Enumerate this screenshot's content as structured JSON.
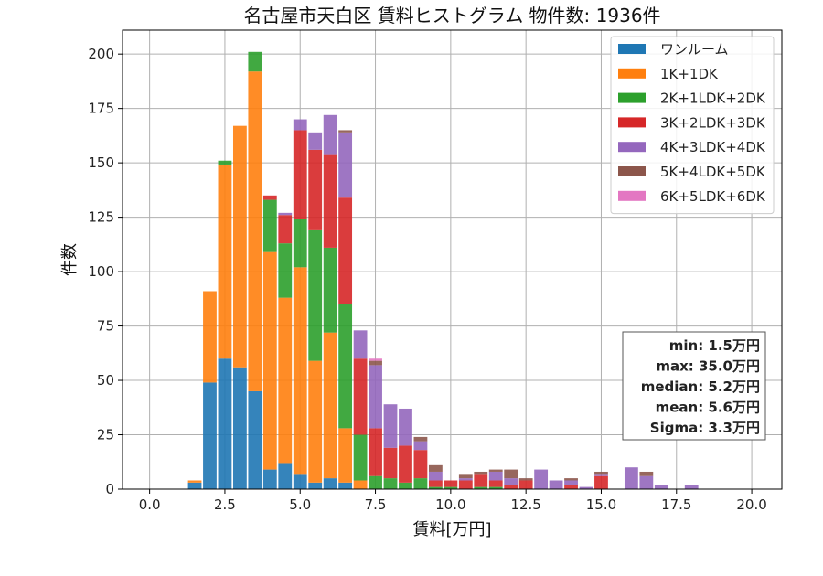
{
  "chart_data": {
    "type": "bar",
    "stacked": true,
    "title": "名古屋市天白区 賃料ヒストグラム 物件数: 1936件",
    "xlabel": "賃料[万円]",
    "ylabel": "件数",
    "xlim": [
      -0.9,
      21.0
    ],
    "ylim": [
      0,
      211
    ],
    "xticks": [
      0.0,
      2.5,
      5.0,
      7.5,
      10.0,
      12.5,
      15.0,
      17.5,
      20.0
    ],
    "xtick_labels": [
      "0.0",
      "2.5",
      "5.0",
      "7.5",
      "10.0",
      "12.5",
      "15.0",
      "17.5",
      "20.0"
    ],
    "yticks": [
      0,
      25,
      50,
      75,
      100,
      125,
      150,
      175,
      200
    ],
    "ytick_labels": [
      "0",
      "25",
      "50",
      "75",
      "100",
      "125",
      "150",
      "175",
      "200"
    ],
    "grid": true,
    "legend_position": "top-right",
    "bin_width": 0.5,
    "x": [
      1.5,
      2.0,
      2.5,
      3.0,
      3.5,
      4.0,
      4.5,
      5.0,
      5.5,
      6.0,
      6.5,
      7.0,
      7.5,
      8.0,
      8.5,
      9.0,
      9.5,
      10.0,
      10.5,
      11.0,
      11.5,
      12.0,
      12.5,
      13.0,
      13.5,
      14.0,
      14.5,
      15.0,
      15.5,
      16.0,
      16.5,
      17.0,
      17.5,
      18.0
    ],
    "series": [
      {
        "name": "ワンルーム",
        "color": "#1f77b4",
        "values": [
          3,
          49,
          60,
          56,
          45,
          9,
          12,
          7,
          3,
          5,
          3,
          0,
          0,
          0,
          0,
          0,
          0,
          0,
          0,
          0,
          0,
          0,
          0,
          0,
          0,
          0,
          0,
          0,
          0,
          0,
          0,
          0,
          0,
          0
        ]
      },
      {
        "name": "1K+1DK",
        "color": "#ff7f0e",
        "values": [
          1,
          42,
          89,
          111,
          147,
          100,
          76,
          95,
          56,
          67,
          25,
          4,
          0,
          0,
          0,
          0,
          0,
          0,
          0,
          0,
          0,
          0,
          0,
          0,
          0,
          0,
          0,
          0,
          0,
          0,
          0,
          0,
          0,
          0
        ]
      },
      {
        "name": "2K+1LDK+2DK",
        "color": "#2ca02c",
        "values": [
          0,
          0,
          2,
          0,
          9,
          24,
          25,
          22,
          60,
          39,
          57,
          21,
          6,
          5,
          3,
          5,
          1,
          1,
          0,
          1,
          1,
          0,
          0,
          0,
          0,
          0,
          0,
          0,
          0,
          0,
          0,
          0,
          0,
          0
        ]
      },
      {
        "name": "3K+2LDK+3DK",
        "color": "#d62728",
        "values": [
          0,
          0,
          0,
          0,
          0,
          2,
          13,
          41,
          37,
          43,
          49,
          35,
          22,
          14,
          17,
          13,
          3,
          3,
          4,
          6,
          3,
          2,
          4,
          0,
          0,
          2,
          0,
          6,
          0,
          0,
          0,
          0,
          0,
          0
        ]
      },
      {
        "name": "4K+3LDK+4DK",
        "color": "#9467bd",
        "values": [
          0,
          0,
          0,
          0,
          0,
          0,
          1,
          5,
          8,
          18,
          30,
          13,
          29,
          20,
          17,
          4,
          4,
          0,
          1,
          0,
          4,
          3,
          0,
          9,
          4,
          2,
          1,
          1,
          0,
          10,
          6,
          2,
          0,
          2
        ]
      },
      {
        "name": "5K+4LDK+5DK",
        "color": "#8c564b",
        "values": [
          0,
          0,
          0,
          0,
          0,
          0,
          0,
          0,
          0,
          0,
          1,
          0,
          2,
          0,
          0,
          2,
          3,
          0,
          2,
          1,
          1,
          4,
          1,
          0,
          0,
          1,
          0,
          1,
          0,
          0,
          2,
          0,
          0,
          0
        ]
      },
      {
        "name": "6K+5LDK+6DK",
        "color": "#e377c2",
        "values": [
          0,
          0,
          0,
          0,
          0,
          0,
          0,
          0,
          0,
          0,
          0,
          0,
          1,
          0,
          0,
          0,
          0,
          0,
          0,
          0,
          0,
          0,
          0,
          0,
          0,
          0,
          0,
          0,
          0,
          0,
          0,
          0,
          0,
          0
        ]
      }
    ],
    "stats_box": {
      "lines": [
        "min: 1.5万円",
        "max: 35.0万円",
        "median: 5.2万円",
        "mean: 5.6万円",
        "Sigma: 3.3万円"
      ],
      "position": "right"
    }
  }
}
